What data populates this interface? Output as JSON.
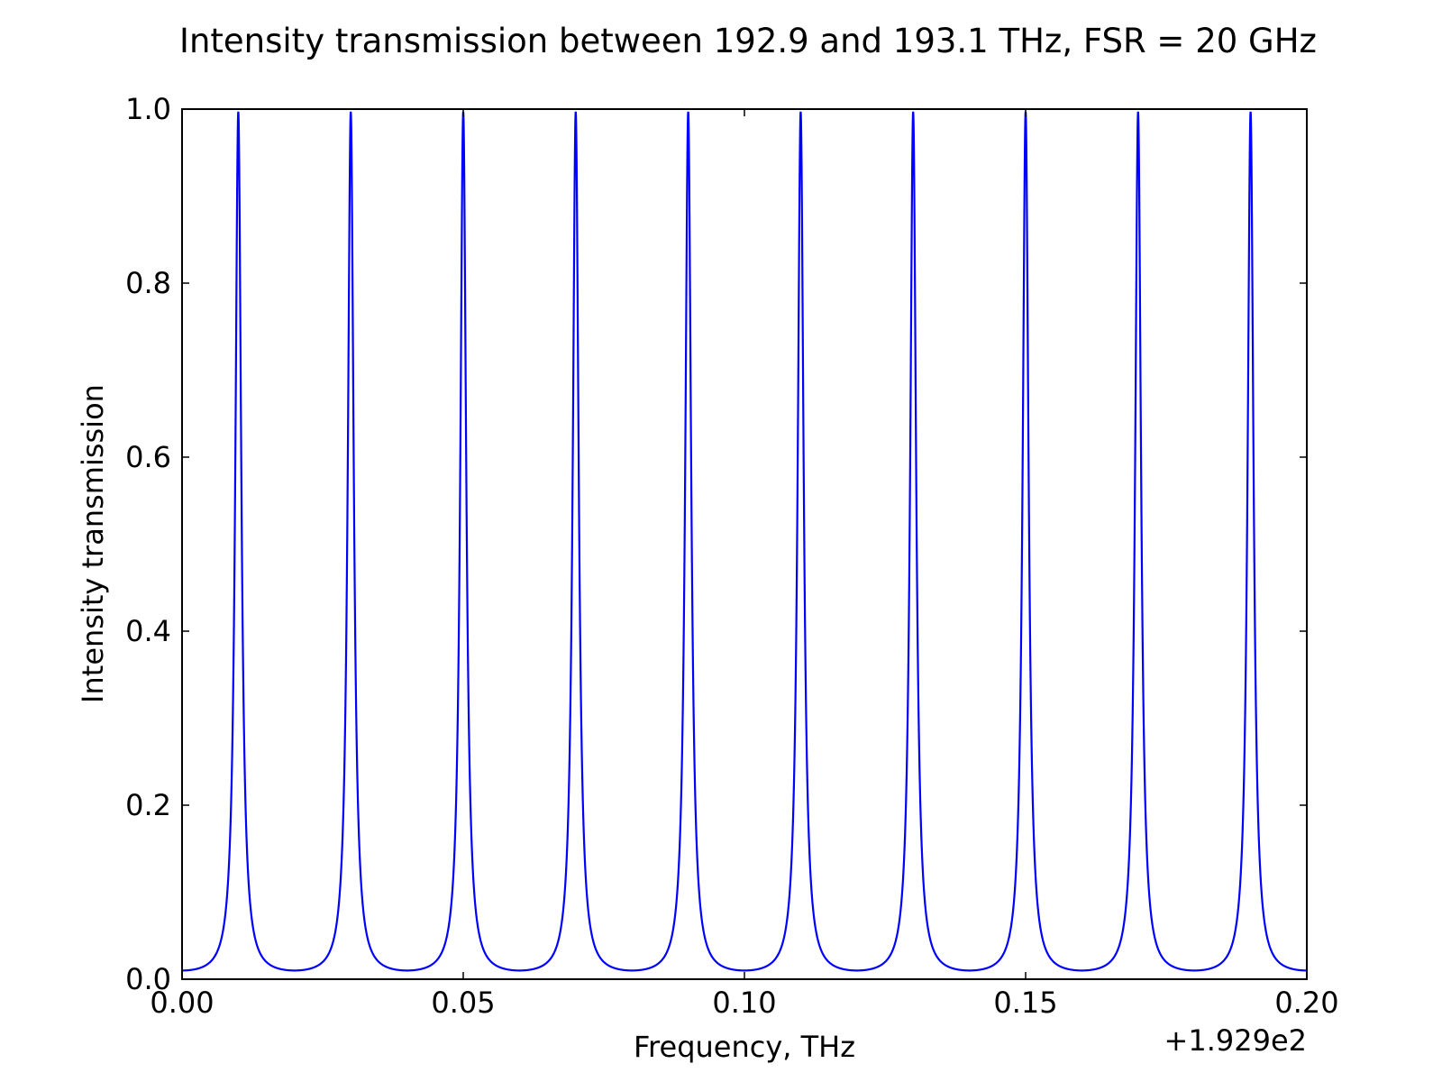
{
  "chart_data": {
    "type": "line",
    "title": "Intensity transmission between 192.9 and 193.1 THz, FSR = 20 GHz",
    "xlabel": "Frequency, THz",
    "ylabel": "Intensity transmission",
    "x_offset_label": "+1.929e2",
    "xlim": [
      0.0,
      0.2
    ],
    "ylim": [
      0.0,
      1.0
    ],
    "x_ticks": [
      0.0,
      0.05,
      0.1,
      0.15,
      0.2
    ],
    "x_tick_labels": [
      "0.00",
      "0.05",
      "0.10",
      "0.15",
      "0.20"
    ],
    "y_ticks": [
      0.0,
      0.2,
      0.4,
      0.6,
      0.8,
      1.0
    ],
    "y_tick_labels": [
      "0.0",
      "0.2",
      "0.4",
      "0.6",
      "0.8",
      "1.0"
    ],
    "grid": false,
    "legend": "none",
    "line_color": "#0000ff",
    "series": [
      {
        "fsr": 0.02,
        "transmission_min": 0.01,
        "transmission_max": 0.997,
        "dip_frequencies": [
          0.0,
          0.02,
          0.04,
          0.06,
          0.08,
          0.1,
          0.12,
          0.14,
          0.16,
          0.18,
          0.2
        ]
      }
    ]
  }
}
